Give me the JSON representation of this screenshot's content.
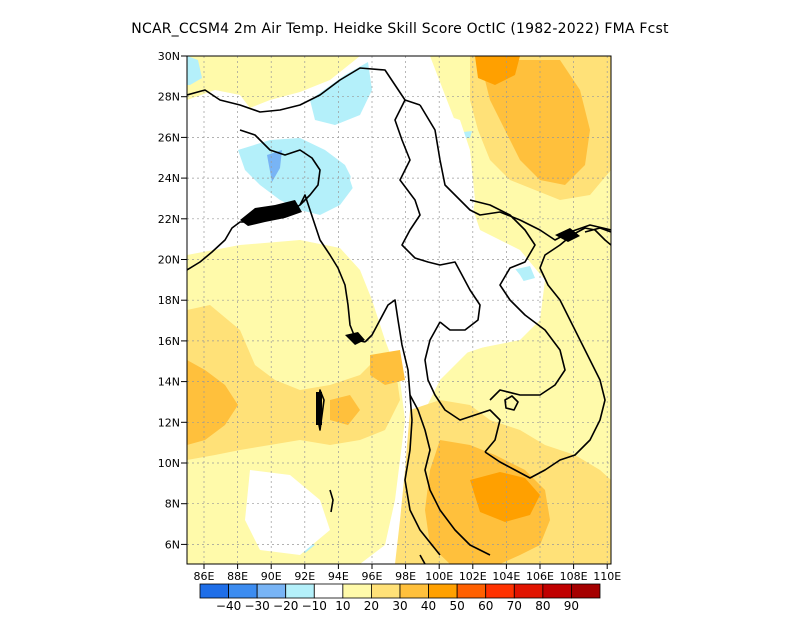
{
  "title": "NCAR_CCSM4  2m Air Temp. Heidke Skill Score OctIC (1982-2022) FMA Fcst",
  "map": {
    "lat_labels": [
      "30N",
      "28N",
      "26N",
      "24N",
      "22N",
      "20N",
      "18N",
      "16N",
      "14N",
      "12N",
      "10N",
      "8N",
      "6N"
    ],
    "lon_labels": [
      "86E",
      "88E",
      "90E",
      "92E",
      "94E",
      "96E",
      "98E",
      "100E",
      "102E",
      "104E",
      "106E",
      "108E",
      "110E"
    ]
  },
  "colorbar": {
    "labels": [
      "-40",
      "-30",
      "-20",
      "-10",
      "10",
      "20",
      "30",
      "40",
      "50",
      "60",
      "70",
      "80",
      "90"
    ],
    "colors": [
      "#1e6ee8",
      "#3c8cf0",
      "#78b4f5",
      "#b4f0fa",
      "#ffffff",
      "#fffaaa",
      "#ffe178",
      "#ffc03c",
      "#ffa000",
      "#ff6000",
      "#ff3200",
      "#e11400",
      "#c00000",
      "#a50000"
    ]
  }
}
